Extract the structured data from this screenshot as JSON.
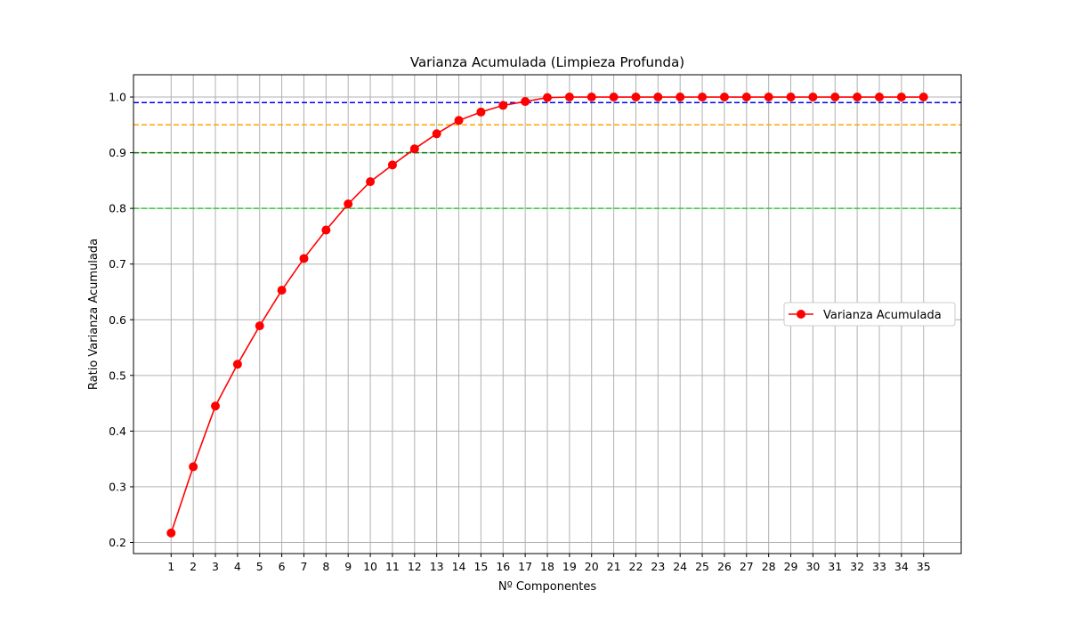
{
  "chart_data": {
    "type": "line",
    "title": "Varianza Acumulada (Limpieza Profunda)",
    "xlabel": "Nº Componentes",
    "ylabel": "Ratio Varianza Acumulada",
    "xlim": [
      -0.7,
      36.7
    ],
    "ylim": [
      0.18,
      1.04
    ],
    "grid": true,
    "x": [
      1,
      2,
      3,
      4,
      5,
      6,
      7,
      8,
      9,
      10,
      11,
      12,
      13,
      14,
      15,
      16,
      17,
      18,
      19,
      20,
      21,
      22,
      23,
      24,
      25,
      26,
      27,
      28,
      29,
      30,
      31,
      32,
      33,
      34,
      35
    ],
    "xticks": [
      "1",
      "2",
      "3",
      "4",
      "5",
      "6",
      "7",
      "8",
      "9",
      "10",
      "11",
      "12",
      "13",
      "14",
      "15",
      "16",
      "17",
      "18",
      "19",
      "20",
      "21",
      "22",
      "23",
      "24",
      "25",
      "26",
      "27",
      "28",
      "29",
      "30",
      "31",
      "32",
      "33",
      "34",
      "35"
    ],
    "yticks": [
      0.2,
      0.3,
      0.4,
      0.5,
      0.6,
      0.7,
      0.8,
      0.9,
      1.0
    ],
    "ytick_labels": [
      "0.2",
      "0.3",
      "0.4",
      "0.5",
      "0.6",
      "0.7",
      "0.8",
      "0.9",
      "1.0"
    ],
    "series": [
      {
        "name": "Varianza Acumulada",
        "color": "#ff0000",
        "marker": "circle",
        "values": [
          0.217,
          0.336,
          0.445,
          0.52,
          0.589,
          0.653,
          0.71,
          0.761,
          0.808,
          0.848,
          0.878,
          0.907,
          0.934,
          0.958,
          0.973,
          0.985,
          0.992,
          0.999,
          1.0,
          1.0,
          1.0,
          1.0,
          1.0,
          1.0,
          1.0,
          1.0,
          1.0,
          1.0,
          1.0,
          1.0,
          1.0,
          1.0,
          1.0,
          1.0,
          1.0
        ]
      }
    ],
    "reference_lines": [
      {
        "y": 0.99,
        "color": "#0000ff",
        "style": "dashed"
      },
      {
        "y": 0.95,
        "color": "#ffa500",
        "style": "dashed"
      },
      {
        "y": 0.9,
        "color": "#008000",
        "style": "dashed"
      },
      {
        "y": 0.8,
        "color": "#32cd32",
        "style": "dashed"
      }
    ],
    "legend": {
      "placement": "center-right",
      "entries": [
        "Varianza Acumulada"
      ]
    }
  }
}
